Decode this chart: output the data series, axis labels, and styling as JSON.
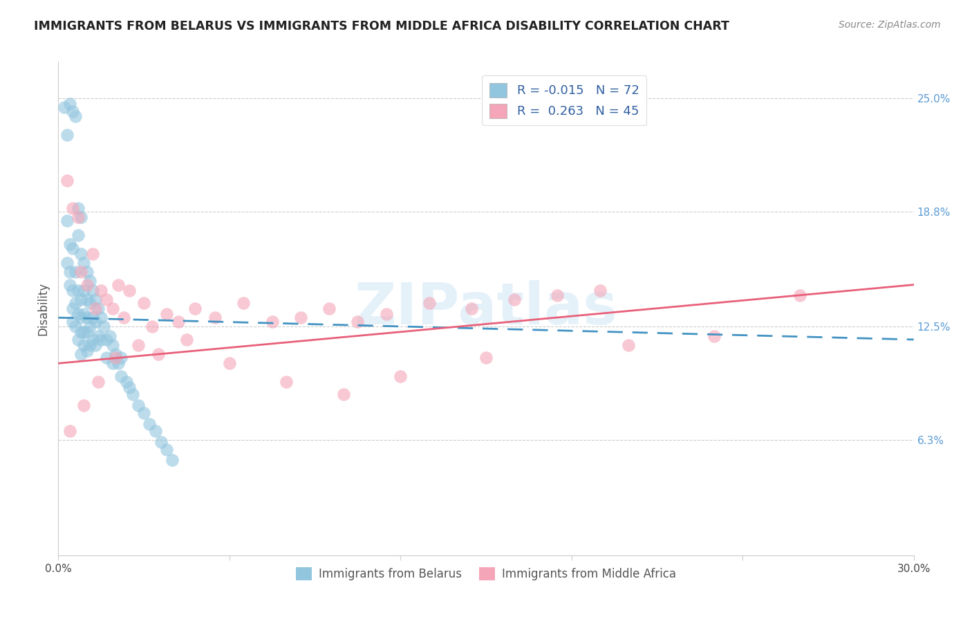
{
  "title": "IMMIGRANTS FROM BELARUS VS IMMIGRANTS FROM MIDDLE AFRICA DISABILITY CORRELATION CHART",
  "source": "Source: ZipAtlas.com",
  "ylabel": "Disability",
  "ytick_labels": [
    "25.0%",
    "18.8%",
    "12.5%",
    "6.3%"
  ],
  "ytick_values": [
    0.25,
    0.188,
    0.125,
    0.063
  ],
  "xlim": [
    0.0,
    0.3
  ],
  "ylim": [
    0.0,
    0.27
  ],
  "legend_belarus": "Immigrants from Belarus",
  "legend_middle_africa": "Immigrants from Middle Africa",
  "R_belarus": "-0.015",
  "N_belarus": "72",
  "R_middle_africa": "0.263",
  "N_middle_africa": "45",
  "blue_color": "#92c5de",
  "pink_color": "#f4a6b8",
  "blue_line_color": "#4393c3",
  "pink_line_color": "#e8607a",
  "watermark": "ZIPatlas",
  "background_color": "#ffffff",
  "grid_color": "#cccccc",
  "belarus_x": [
    0.002,
    0.003,
    0.003,
    0.003,
    0.004,
    0.004,
    0.004,
    0.004,
    0.005,
    0.005,
    0.005,
    0.005,
    0.005,
    0.006,
    0.006,
    0.006,
    0.006,
    0.007,
    0.007,
    0.007,
    0.007,
    0.007,
    0.008,
    0.008,
    0.008,
    0.008,
    0.008,
    0.008,
    0.009,
    0.009,
    0.009,
    0.009,
    0.009,
    0.01,
    0.01,
    0.01,
    0.01,
    0.01,
    0.011,
    0.011,
    0.011,
    0.011,
    0.012,
    0.012,
    0.012,
    0.013,
    0.013,
    0.013,
    0.014,
    0.014,
    0.015,
    0.015,
    0.016,
    0.017,
    0.017,
    0.018,
    0.019,
    0.019,
    0.02,
    0.021,
    0.022,
    0.022,
    0.024,
    0.025,
    0.026,
    0.028,
    0.03,
    0.032,
    0.034,
    0.036,
    0.038,
    0.04
  ],
  "belarus_y": [
    0.245,
    0.23,
    0.183,
    0.16,
    0.247,
    0.17,
    0.155,
    0.148,
    0.243,
    0.168,
    0.145,
    0.135,
    0.128,
    0.24,
    0.155,
    0.138,
    0.125,
    0.19,
    0.175,
    0.145,
    0.132,
    0.118,
    0.185,
    0.165,
    0.14,
    0.13,
    0.122,
    0.11,
    0.16,
    0.145,
    0.132,
    0.122,
    0.115,
    0.155,
    0.14,
    0.13,
    0.122,
    0.112,
    0.15,
    0.138,
    0.125,
    0.115,
    0.145,
    0.13,
    0.118,
    0.14,
    0.128,
    0.115,
    0.135,
    0.12,
    0.13,
    0.118,
    0.125,
    0.118,
    0.108,
    0.12,
    0.115,
    0.105,
    0.11,
    0.105,
    0.108,
    0.098,
    0.095,
    0.092,
    0.088,
    0.082,
    0.078,
    0.072,
    0.068,
    0.062,
    0.058,
    0.052
  ],
  "middle_africa_x": [
    0.003,
    0.005,
    0.007,
    0.008,
    0.01,
    0.012,
    0.013,
    0.015,
    0.017,
    0.019,
    0.021,
    0.023,
    0.025,
    0.03,
    0.033,
    0.038,
    0.042,
    0.048,
    0.055,
    0.065,
    0.075,
    0.085,
    0.095,
    0.105,
    0.115,
    0.13,
    0.145,
    0.16,
    0.175,
    0.19,
    0.004,
    0.009,
    0.014,
    0.02,
    0.028,
    0.035,
    0.045,
    0.06,
    0.08,
    0.1,
    0.12,
    0.15,
    0.2,
    0.23,
    0.26
  ],
  "middle_africa_y": [
    0.205,
    0.19,
    0.185,
    0.155,
    0.148,
    0.165,
    0.135,
    0.145,
    0.14,
    0.135,
    0.148,
    0.13,
    0.145,
    0.138,
    0.125,
    0.132,
    0.128,
    0.135,
    0.13,
    0.138,
    0.128,
    0.13,
    0.135,
    0.128,
    0.132,
    0.138,
    0.135,
    0.14,
    0.142,
    0.145,
    0.068,
    0.082,
    0.095,
    0.108,
    0.115,
    0.11,
    0.118,
    0.105,
    0.095,
    0.088,
    0.098,
    0.108,
    0.115,
    0.12,
    0.142
  ]
}
